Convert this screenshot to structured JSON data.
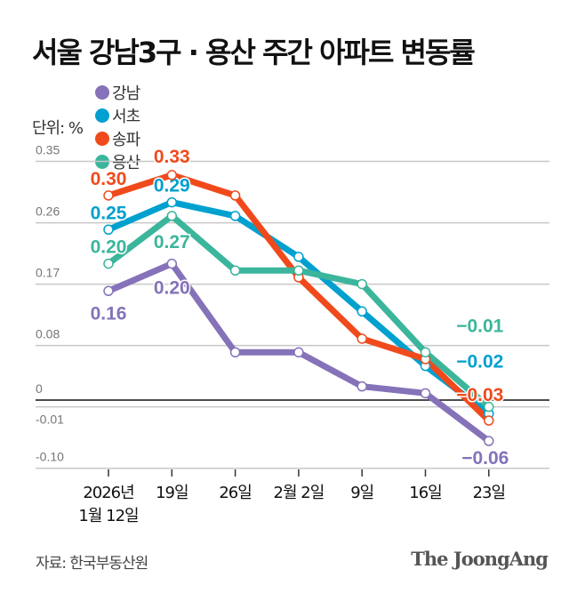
{
  "header": {
    "title": "서울 강남3구 · 용산 주간 아파트 변동률",
    "unit": "단위: %"
  },
  "footer": {
    "source": "자료: 한국부동산원",
    "logo": "The JoongAng"
  },
  "colors": {
    "강남": "#8572b9",
    "서초": "#00a0cf",
    "송파": "#f04a1c",
    "용산": "#3bb59b"
  },
  "chart_data": {
    "type": "line",
    "title": "서울 강남3구 · 용산 주간 아파트 변동률",
    "ylabel": "단위: %",
    "x": [
      "2026년 1월 12일",
      "19일",
      "26일",
      "2월 2일",
      "9일",
      "16일",
      "23일"
    ],
    "x_lines": [
      [
        "2026년",
        "1월 12일"
      ],
      [
        "19일"
      ],
      [
        "26일"
      ],
      [
        "2월 2일"
      ],
      [
        "9일"
      ],
      [
        "16일"
      ],
      [
        "23일"
      ]
    ],
    "yticks": [
      0.35,
      0.26,
      0.17,
      0.08,
      0,
      -0.01,
      -0.1
    ],
    "ytick_labels": [
      "0.35",
      "0.26",
      "0.17",
      "0.08",
      "0",
      "-0.01",
      "-0.10"
    ],
    "ylim": [
      -0.1,
      0.35
    ],
    "grid": true,
    "legend": "top-left",
    "series": [
      {
        "name": "강남",
        "color": "#8572b9",
        "values": [
          0.16,
          0.2,
          0.07,
          0.07,
          0.02,
          0.01,
          -0.06
        ],
        "labels": {
          "0": "0.16",
          "1": "0.20",
          "6": "−0.06"
        }
      },
      {
        "name": "서초",
        "color": "#00a0cf",
        "values": [
          0.25,
          0.29,
          0.27,
          0.21,
          0.13,
          0.05,
          -0.02
        ],
        "labels": {
          "0": "0.25",
          "1": "0.29",
          "6": "−0.02"
        }
      },
      {
        "name": "송파",
        "color": "#f04a1c",
        "values": [
          0.3,
          0.33,
          0.3,
          0.18,
          0.09,
          0.06,
          -0.03
        ],
        "labels": {
          "0": "0.30",
          "1": "0.33",
          "6": "−0.03"
        }
      },
      {
        "name": "용산",
        "color": "#3bb59b",
        "values": [
          0.2,
          0.27,
          0.19,
          0.19,
          0.17,
          0.07,
          -0.01
        ],
        "labels": {
          "0": "0.20",
          "1": "0.27",
          "6": "−0.01"
        }
      }
    ]
  }
}
